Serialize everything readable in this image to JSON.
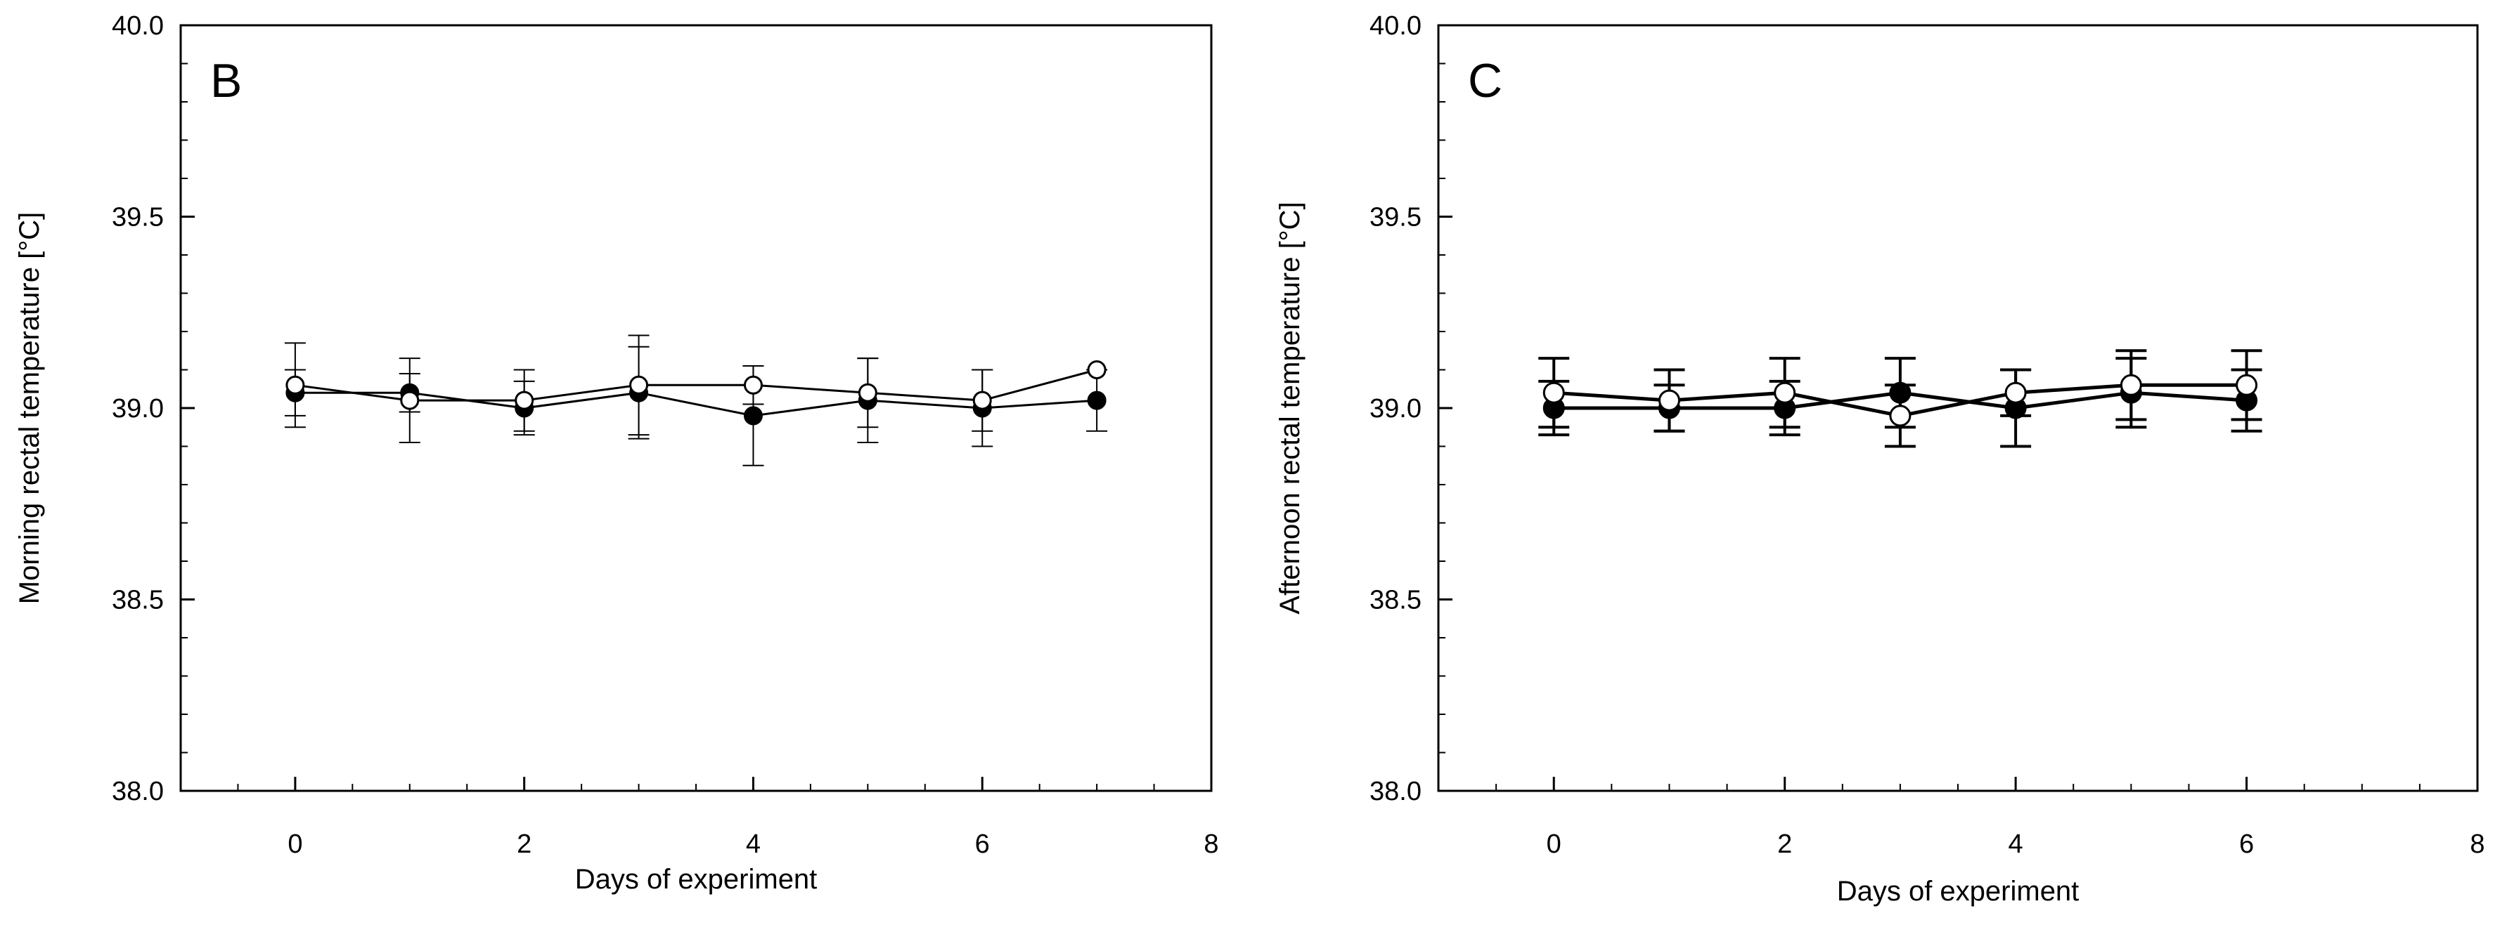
{
  "chart_data": [
    {
      "type": "line",
      "panel_label": "B",
      "xlabel": "Days of  experiment",
      "ylabel": "Morning rectal temperature  [°C]",
      "xlim": [
        -1,
        8
      ],
      "ylim": [
        38.0,
        40.0
      ],
      "xticks": [
        "0",
        "2",
        "4",
        "6",
        "8"
      ],
      "yticks": [
        "38.0",
        "38.5",
        "39.0",
        "39.5",
        "40.0"
      ],
      "x_minor_step": 0.5,
      "y_minor_step": 0.1,
      "grid": false,
      "series": [
        {
          "name": "filled",
          "marker": "filled-circle",
          "x": [
            0,
            1,
            2,
            3,
            4,
            5,
            6,
            7
          ],
          "values": [
            39.04,
            39.04,
            39.0,
            39.04,
            38.98,
            39.02,
            39.0,
            39.02
          ],
          "errors": [
            0.06,
            0.05,
            0.07,
            0.12,
            0.13,
            0.11,
            0.1,
            0.08
          ]
        },
        {
          "name": "open",
          "marker": "open-circle",
          "x": [
            0,
            1,
            2,
            3,
            4,
            5,
            6,
            7
          ],
          "values": [
            39.06,
            39.02,
            39.02,
            39.06,
            39.06,
            39.04,
            39.02,
            39.1
          ],
          "errors": [
            0.11,
            0.11,
            0.08,
            0.13,
            0.05,
            0.09,
            0.08,
            0.0
          ]
        }
      ]
    },
    {
      "type": "line",
      "panel_label": "C",
      "xlabel": "Days of  experiment",
      "ylabel": "Afternoon rectal temperature [°C]",
      "xlim": [
        -1,
        8
      ],
      "ylim": [
        38.0,
        40.0
      ],
      "xticks": [
        "0",
        "2",
        "4",
        "6",
        "8"
      ],
      "yticks": [
        "38.0",
        "38.5",
        "39.0",
        "39.5",
        "40.0"
      ],
      "x_minor_step": 0.5,
      "y_minor_step": 0.1,
      "grid": false,
      "series": [
        {
          "name": "filled",
          "marker": "filled-circle",
          "x": [
            0,
            1,
            2,
            3,
            4,
            5,
            6
          ],
          "values": [
            39.0,
            39.0,
            39.0,
            39.04,
            39.0,
            39.04,
            39.02
          ],
          "errors": [
            0.07,
            0.06,
            0.07,
            0.09,
            0.1,
            0.09,
            0.08
          ]
        },
        {
          "name": "open",
          "marker": "open-circle",
          "x": [
            0,
            1,
            2,
            3,
            4,
            5,
            6
          ],
          "values": [
            39.04,
            39.02,
            39.04,
            38.98,
            39.04,
            39.06,
            39.06
          ],
          "errors": [
            0.09,
            0.08,
            0.09,
            0.08,
            0.06,
            0.09,
            0.09
          ]
        }
      ]
    }
  ]
}
